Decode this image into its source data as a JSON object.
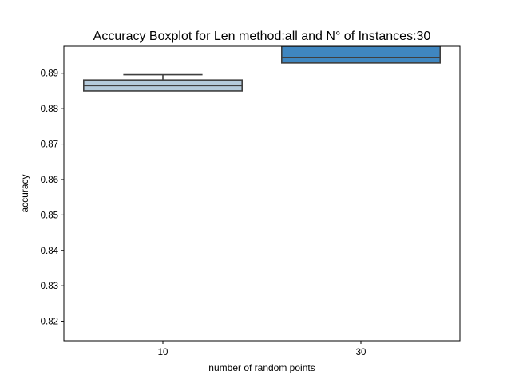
{
  "chart_data": {
    "type": "boxplot",
    "title": "Accuracy Boxplot for Len method:all and N° of Instances:30",
    "xlabel": "number of random points",
    "ylabel": "accuracy",
    "categories": [
      "10",
      "30"
    ],
    "ylim": [
      0.8145,
      0.8976
    ],
    "yticks": [
      0.82,
      0.83,
      0.84,
      0.85,
      0.86,
      0.87,
      0.88,
      0.89
    ],
    "yticklabels": [
      "0.82",
      "0.83",
      "0.84",
      "0.85",
      "0.86",
      "0.87",
      "0.88",
      "0.89"
    ],
    "boxes": [
      {
        "category": "10",
        "whisker_low": 0.885,
        "q1": 0.885,
        "median": 0.8865,
        "q3": 0.8881,
        "whisker_high": 0.8896,
        "color": "#b4cadb"
      },
      {
        "category": "30",
        "whisker_low": 0.8929,
        "q1": 0.8929,
        "median": 0.8944,
        "q3": 0.8976,
        "whisker_high": 0.8976,
        "color": "#3f86c0"
      }
    ],
    "edge_color": "#3f3f3f",
    "grid": false,
    "legend": "none"
  }
}
